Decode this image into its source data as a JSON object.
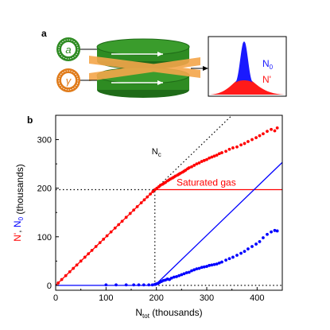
{
  "panel_a": {
    "label": "a",
    "trap_top_symbol": "a",
    "trap_bottom_symbol": "γ",
    "inset_labels": {
      "condensate": "N",
      "condensate_sub": "0",
      "thermal": "N'"
    },
    "colors": {
      "ring": "#2e8b22",
      "ring_dark": "#1f6b18",
      "beam": "#f4a64a",
      "trap_bottom_icon": "#e07b1a",
      "condensate": "#1a1aff",
      "thermal": "#ff1a1a"
    }
  },
  "panel_b": {
    "label": "b"
  },
  "chart_data": {
    "type": "scatter",
    "xlabel": "N",
    "xlabel_sub": "tot",
    "xlabel_suffix": " (thousands)",
    "ylabel_parts": [
      {
        "text": "N'",
        "color": "#ff0000"
      },
      {
        "text": ", ",
        "color": "#000000"
      },
      {
        "text": "N",
        "color": "#0000ff",
        "sub": "0"
      },
      {
        "text": " (thousands)",
        "color": "#000000"
      }
    ],
    "xlim": [
      0,
      450
    ],
    "ylim": [
      -10,
      350
    ],
    "x_ticks": [
      0,
      100,
      200,
      300,
      400
    ],
    "y_ticks": [
      0,
      100,
      200,
      300
    ],
    "critical_label": "N",
    "critical_label_sub": "c",
    "critical_x": 197,
    "saturation_y": 197,
    "saturation_label": "Saturated gas",
    "reference_lines": [
      {
        "name": "thermal-ideal",
        "color": "#ff0000",
        "style": "solid",
        "points": [
          [
            0,
            0
          ],
          [
            197,
            197
          ]
        ]
      },
      {
        "name": "saturated-gas",
        "color": "#ff0000",
        "style": "solid",
        "points": [
          [
            197,
            197
          ],
          [
            450,
            197
          ]
        ]
      },
      {
        "name": "diagonal",
        "color": "#000000",
        "style": "dotted",
        "points": [
          [
            197,
            197
          ],
          [
            350,
            350
          ]
        ]
      },
      {
        "name": "condensate-ideal-zero",
        "color": "#0000ff",
        "style": "solid",
        "points": [
          [
            0,
            0
          ],
          [
            197,
            0
          ]
        ]
      },
      {
        "name": "condensate-ideal",
        "color": "#0000ff",
        "style": "solid",
        "points": [
          [
            197,
            0
          ],
          [
            450,
            253
          ]
        ]
      },
      {
        "name": "critical-vertical",
        "color": "#000000",
        "style": "dotted",
        "points": [
          [
            197,
            0
          ],
          [
            197,
            197
          ]
        ]
      },
      {
        "name": "saturation-horizontal",
        "color": "#000000",
        "style": "dotted",
        "points": [
          [
            0,
            197
          ],
          [
            197,
            197
          ]
        ]
      },
      {
        "name": "zero-baseline",
        "color": "#000000",
        "style": "dotted",
        "points": [
          [
            197,
            0
          ],
          [
            450,
            0
          ]
        ]
      }
    ],
    "series": [
      {
        "name": "N'",
        "color": "#ff0000",
        "x": [
          5,
          12,
          20,
          28,
          35,
          42,
          50,
          58,
          65,
          72,
          80,
          88,
          95,
          102,
          110,
          118,
          125,
          132,
          140,
          148,
          155,
          162,
          170,
          176,
          182,
          188,
          193,
          197,
          201,
          205,
          208,
          212,
          215,
          218,
          222,
          225,
          228,
          232,
          235,
          238,
          242,
          245,
          248,
          252,
          255,
          258,
          262,
          265,
          270,
          275,
          280,
          285,
          290,
          295,
          300,
          305,
          310,
          315,
          320,
          325,
          330,
          338,
          345,
          352,
          360,
          368,
          375,
          382,
          390,
          398,
          405,
          412,
          420,
          428,
          435,
          440
        ],
        "y": [
          5,
          12,
          20,
          28,
          35,
          42,
          50,
          58,
          65,
          72,
          80,
          88,
          95,
          102,
          110,
          118,
          125,
          132,
          140,
          148,
          155,
          162,
          170,
          176,
          182,
          188,
          193,
          197,
          200,
          203,
          206,
          208,
          210,
          212,
          215,
          217,
          219,
          221,
          223,
          225,
          227,
          229,
          231,
          233,
          235,
          237,
          240,
          242,
          244,
          247,
          250,
          252,
          255,
          257,
          259,
          262,
          264,
          266,
          268,
          271,
          273,
          276,
          280,
          283,
          285,
          289,
          292,
          296,
          300,
          304,
          308,
          312,
          317,
          321,
          318,
          324
        ]
      },
      {
        "name": "N0",
        "color": "#0000ff",
        "x": [
          100,
          120,
          140,
          155,
          165,
          175,
          185,
          192,
          197,
          200,
          203,
          206,
          210,
          214,
          218,
          222,
          226,
          230,
          235,
          240,
          245,
          250,
          255,
          260,
          265,
          270,
          275,
          280,
          285,
          290,
          295,
          300,
          305,
          310,
          315,
          320,
          325,
          330,
          338,
          345,
          352,
          360,
          368,
          375,
          382,
          390,
          398,
          405,
          412,
          420,
          428,
          435,
          440
        ],
        "y": [
          1,
          1,
          1,
          1,
          1,
          1,
          1,
          1,
          2,
          3,
          4,
          6,
          8,
          10,
          11,
          13,
          12,
          15,
          17,
          18,
          20,
          22,
          24,
          26,
          27,
          30,
          32,
          34,
          35,
          37,
          38,
          39,
          41,
          42,
          43,
          44,
          46,
          48,
          52,
          55,
          58,
          62,
          66,
          70,
          75,
          80,
          85,
          90,
          98,
          105,
          110,
          113,
          112
        ]
      }
    ]
  }
}
